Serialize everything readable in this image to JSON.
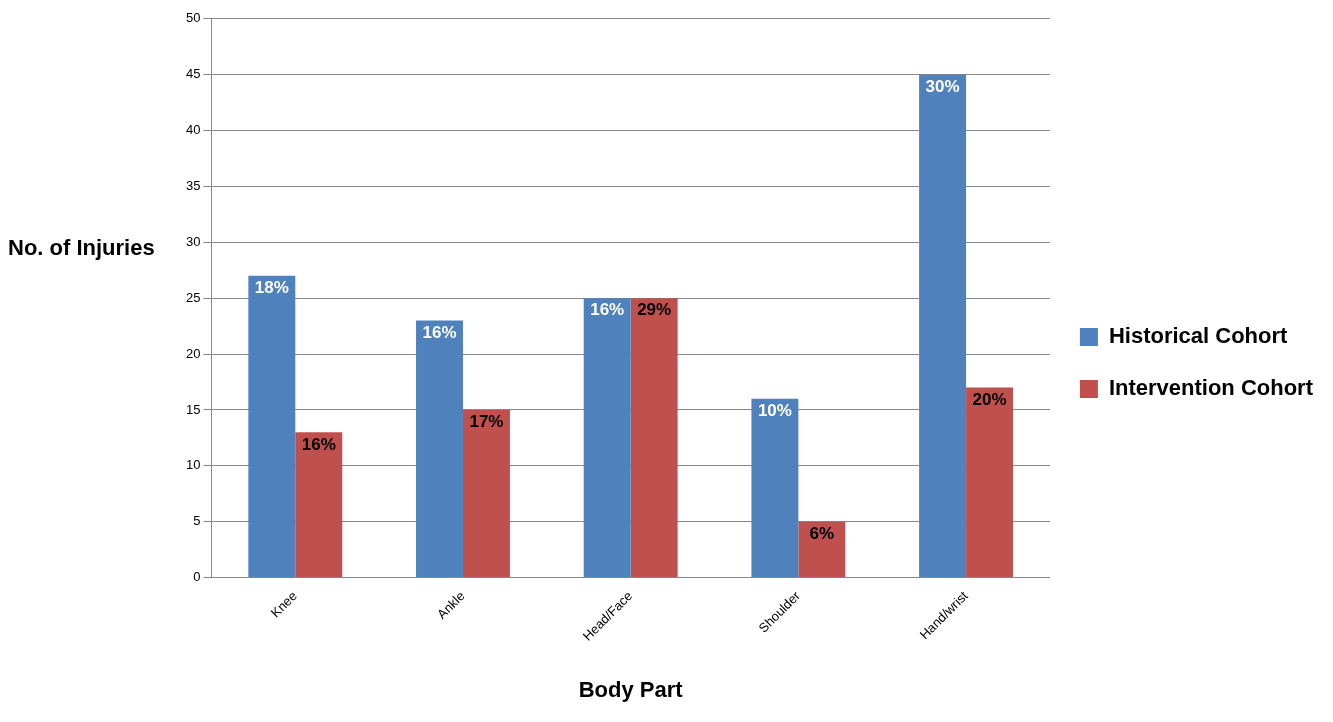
{
  "chart_data": {
    "type": "bar",
    "xlabel": "Body Part",
    "ylabel": "No. of Injuries",
    "categories": [
      "Knee",
      "Ankle",
      "Head/Face",
      "Shoulder",
      "Hand/wrist"
    ],
    "series": [
      {
        "name": "Historical Cohort",
        "color": "#4f81bd",
        "values": [
          27,
          23,
          25,
          16,
          45
        ]
      },
      {
        "name": "Intervention Cohort",
        "color": "#c0504d",
        "values": [
          13,
          15,
          25,
          5,
          17
        ]
      }
    ],
    "annotations": [
      {
        "text": "18%",
        "x": "Knee",
        "y": 27
      },
      {
        "text": "16%",
        "x": "Knee",
        "y": 13
      },
      {
        "text": "16%",
        "x": "Ankle",
        "y": 23
      },
      {
        "text": "17%",
        "x": "Ankle",
        "y": 15
      },
      {
        "text": "16%",
        "x": "Head/Face",
        "y": 25
      },
      {
        "text": "29%",
        "x": "Head/Face",
        "y": 25
      },
      {
        "text": "10%",
        "x": "Shoulder",
        "y": 16
      },
      {
        "text": "6%",
        "x": "Shoulder",
        "y": 5
      },
      {
        "text": "30%",
        "x": "Hand/wrist",
        "y": 45
      },
      {
        "text": "20%",
        "x": "Hand/wrist",
        "y": 17
      }
    ],
    "ylim": [
      0,
      50
    ],
    "yticks": [
      0,
      5,
      10,
      15,
      20,
      25,
      30,
      35,
      40,
      45,
      50
    ],
    "grid": "y",
    "legend": "right"
  }
}
